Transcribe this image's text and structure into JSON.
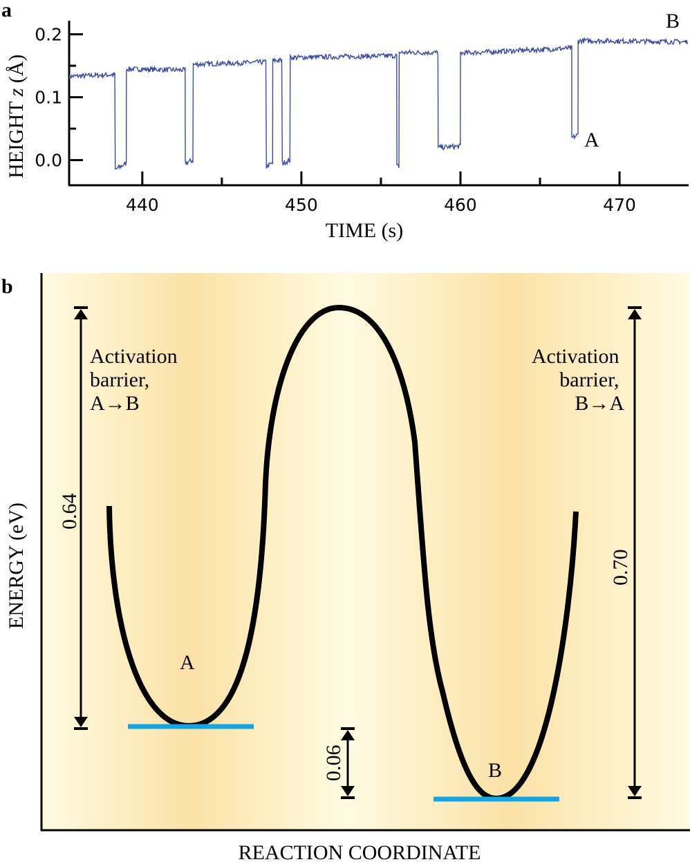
{
  "panel_a_label": "a",
  "panel_b_label": "b",
  "chart_data": {
    "type": "line",
    "xlabel": "TIME (s)",
    "ylabel_main": "HEIGHT ",
    "ylabel_var": "z",
    "ylabel_unit": " (Å)",
    "xlim": [
      435.4,
      474.3
    ],
    "ylim": [
      -0.04,
      0.215
    ],
    "x_ticks": [
      440,
      450,
      460,
      470
    ],
    "x_tick_labels": [
      "440",
      "450",
      "460",
      "470"
    ],
    "x_minor_ticks": [
      445,
      455,
      465
    ],
    "y_ticks": [
      0.0,
      0.1,
      0.2
    ],
    "y_tick_labels": [
      "0.0",
      "0.1",
      "0.2"
    ],
    "y_minor_ticks": [
      0.05,
      0.15
    ],
    "grid": false,
    "line_color": "#3a4aa8",
    "segments": [
      {
        "t0": 435.4,
        "t1": 438.3,
        "z0": 0.133,
        "z1": 0.136
      },
      {
        "t0": 438.3,
        "t1": 439.0,
        "z0": -0.015,
        "z1": -0.005
      },
      {
        "t0": 439.0,
        "t1": 442.7,
        "z0": 0.145,
        "z1": 0.143
      },
      {
        "t0": 442.7,
        "t1": 443.2,
        "z0": -0.005,
        "z1": 0.0
      },
      {
        "t0": 443.2,
        "t1": 447.8,
        "z0": 0.152,
        "z1": 0.156
      },
      {
        "t0": 447.8,
        "t1": 448.2,
        "z0": -0.01,
        "z1": -0.005
      },
      {
        "t0": 448.2,
        "t1": 448.8,
        "z0": 0.158,
        "z1": 0.159
      },
      {
        "t0": 448.8,
        "t1": 449.3,
        "z0": -0.005,
        "z1": 0.0
      },
      {
        "t0": 449.3,
        "t1": 456.0,
        "z0": 0.163,
        "z1": 0.166
      },
      {
        "t0": 456.0,
        "t1": 456.15,
        "z0": -0.01,
        "z1": -0.01
      },
      {
        "t0": 456.15,
        "t1": 458.6,
        "z0": 0.171,
        "z1": 0.171
      },
      {
        "t0": 458.6,
        "t1": 460.0,
        "z0": 0.02,
        "z1": 0.022
      },
      {
        "t0": 460.0,
        "t1": 467.0,
        "z0": 0.17,
        "z1": 0.178
      },
      {
        "t0": 467.0,
        "t1": 467.4,
        "z0": 0.035,
        "z1": 0.04
      },
      {
        "t0": 467.4,
        "t1": 474.3,
        "z0": 0.19,
        "z1": 0.188
      }
    ],
    "annotations": [
      "A",
      "B"
    ]
  },
  "diagram": {
    "ylabel": "ENERGY (eV)",
    "xlabel": "REACTION COORDINATE",
    "left_barrier_text": [
      "Activation",
      "barrier,",
      "A→B"
    ],
    "right_barrier_text": [
      "Activation",
      "barrier,",
      "B→A"
    ],
    "left_barrier_value": "0.64",
    "right_barrier_value": "0.70",
    "difference_value": "0.06",
    "well_a_label": "A",
    "well_b_label": "B",
    "curve_color": "#000000",
    "level_color": "#12a6e6",
    "background_light": "#fffbe0",
    "background_dark": "#fbe3a8"
  }
}
